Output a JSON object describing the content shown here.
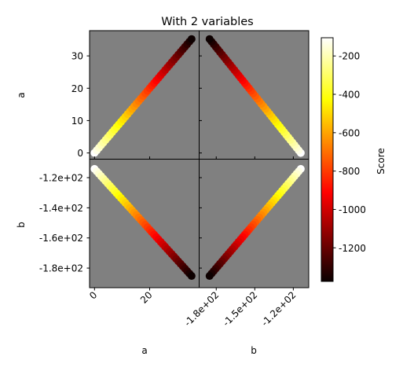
{
  "chart_data": {
    "type": "scatter",
    "title": "With 2 variables",
    "variables": [
      "a",
      "b"
    ],
    "a_ticks": [
      {
        "value": 0,
        "label": "0"
      },
      {
        "value": 10,
        "label": "10"
      },
      {
        "value": 20,
        "label": "20"
      },
      {
        "value": 30,
        "label": "30"
      }
    ],
    "a_xticks": [
      {
        "value": 0,
        "label": "0"
      },
      {
        "value": 20,
        "label": "20"
      }
    ],
    "b_ticks": [
      {
        "value": -120,
        "label": "-1.2e+02"
      },
      {
        "value": -140,
        "label": "-1.4e+02"
      },
      {
        "value": -160,
        "label": "-1.6e+02"
      },
      {
        "value": -180,
        "label": "-1.8e+02"
      }
    ],
    "b_xticks": [
      {
        "value": -180,
        "label": "-1.8e+02"
      },
      {
        "value": -150,
        "label": "-1.5e+02"
      },
      {
        "value": -120,
        "label": "-1.2e+02"
      }
    ],
    "a_range": [
      -1.8,
      37.8
    ],
    "b_range": [
      -193,
      -108
    ],
    "samples": {
      "a_start": 0,
      "a_end": 35.2,
      "a_step": 0.8,
      "b_start": -114.2,
      "b_end": -185.2,
      "score_start": -105,
      "score_end": -1370,
      "note_relation": "b and score decrease as a increases"
    },
    "colorbar": {
      "label": "Score",
      "colormap": "hot",
      "range": [
        -1375,
        -105
      ],
      "ticks": [
        {
          "value": -200,
          "label": "-200"
        },
        {
          "value": -400,
          "label": "-400"
        },
        {
          "value": -600,
          "label": "-600"
        },
        {
          "value": -800,
          "label": "-800"
        },
        {
          "value": -1000,
          "label": "-1000"
        },
        {
          "value": -1200,
          "label": "-1200"
        }
      ]
    },
    "panel_background": "#808080"
  }
}
